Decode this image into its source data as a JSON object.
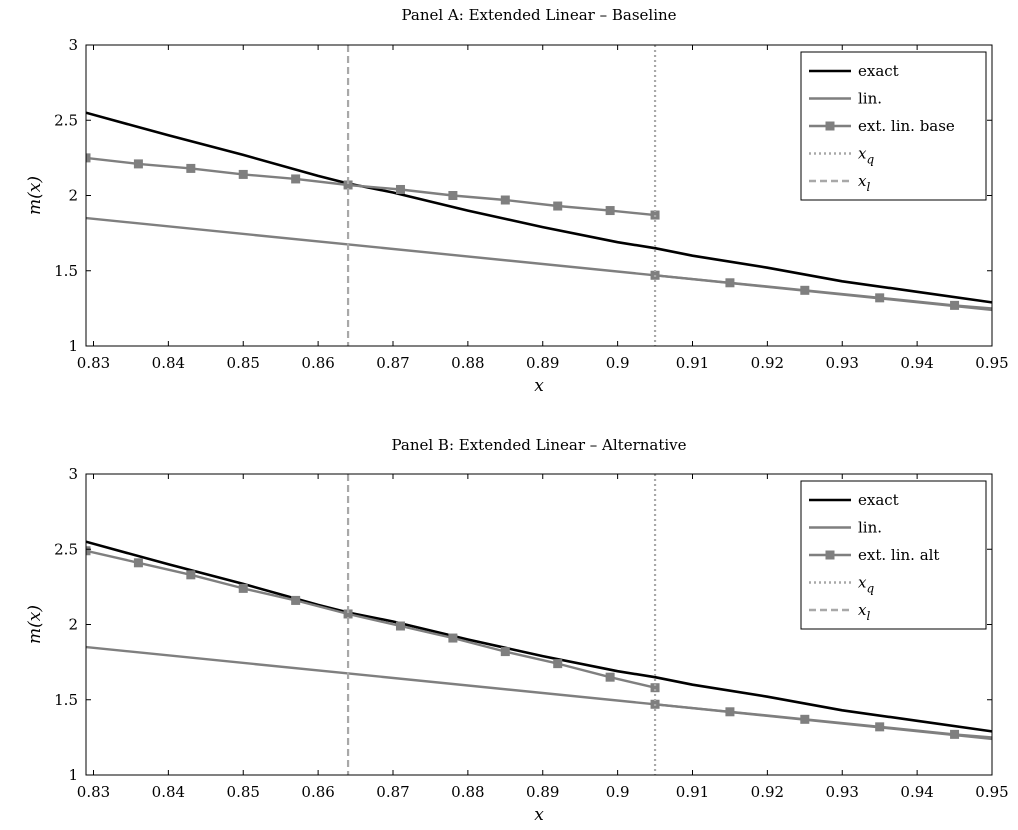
{
  "chart_data": [
    {
      "type": "line",
      "title": "Panel A: Extended Linear – Baseline",
      "xlabel": "x",
      "ylabel": "m(x)",
      "xlim": [
        0.829,
        0.95
      ],
      "ylim": [
        1,
        3
      ],
      "xticks": [
        "0.83",
        "0.84",
        "0.85",
        "0.86",
        "0.87",
        "0.88",
        "0.89",
        "0.9",
        "0.91",
        "0.92",
        "0.93",
        "0.94",
        "0.95"
      ],
      "yticks": [
        "1",
        "1.5",
        "2",
        "2.5",
        "3"
      ],
      "legend_position": "top-right",
      "grid": false,
      "series": [
        {
          "name": "exact",
          "color": "#000000",
          "style": "solid",
          "x": [
            0.829,
            0.84,
            0.85,
            0.86,
            0.864,
            0.87,
            0.88,
            0.89,
            0.9,
            0.905,
            0.91,
            0.92,
            0.93,
            0.94,
            0.95
          ],
          "y": [
            2.55,
            2.4,
            2.27,
            2.13,
            2.08,
            2.02,
            1.9,
            1.79,
            1.69,
            1.65,
            1.6,
            1.52,
            1.43,
            1.36,
            1.29
          ]
        },
        {
          "name": "lin.",
          "color": "#7f7f7f",
          "style": "solid",
          "x": [
            0.829,
            0.905,
            0.95
          ],
          "y": [
            1.85,
            1.47,
            1.24
          ]
        },
        {
          "name": "ext. lin. base",
          "color": "#7f7f7f",
          "style": "solid",
          "marker": "square",
          "segments": [
            {
              "x": [
                0.829,
                0.836,
                0.843,
                0.85,
                0.857,
                0.864,
                0.871,
                0.878,
                0.885,
                0.892,
                0.899,
                0.905
              ],
              "y": [
                2.25,
                2.21,
                2.18,
                2.14,
                2.11,
                2.07,
                2.04,
                2.0,
                1.97,
                1.93,
                1.9,
                1.87
              ]
            },
            {
              "x": [
                0.905,
                0.915,
                0.925,
                0.935,
                0.945,
                0.95
              ],
              "y": [
                1.47,
                1.42,
                1.37,
                1.32,
                1.27,
                1.25
              ],
              "markers": [
                0.905,
                0.915,
                0.925,
                0.935,
                0.945
              ]
            }
          ]
        },
        {
          "name": "x_q",
          "color": "#a8a8a8",
          "style": "dotted",
          "x": 0.905
        },
        {
          "name": "x_l",
          "color": "#a8a8a8",
          "style": "dashed",
          "x": 0.864
        }
      ]
    },
    {
      "type": "line",
      "title": "Panel B: Extended Linear – Alternative",
      "xlabel": "x",
      "ylabel": "m(x)",
      "xlim": [
        0.829,
        0.95
      ],
      "ylim": [
        1,
        3
      ],
      "xticks": [
        "0.83",
        "0.84",
        "0.85",
        "0.86",
        "0.87",
        "0.88",
        "0.89",
        "0.9",
        "0.91",
        "0.92",
        "0.93",
        "0.94",
        "0.95"
      ],
      "yticks": [
        "1",
        "1.5",
        "2",
        "2.5",
        "3"
      ],
      "legend_position": "top-right",
      "grid": false,
      "series": [
        {
          "name": "exact",
          "color": "#000000",
          "style": "solid",
          "x": [
            0.829,
            0.84,
            0.85,
            0.86,
            0.864,
            0.87,
            0.88,
            0.89,
            0.9,
            0.905,
            0.91,
            0.92,
            0.93,
            0.94,
            0.95
          ],
          "y": [
            2.55,
            2.4,
            2.27,
            2.13,
            2.08,
            2.02,
            1.9,
            1.79,
            1.69,
            1.65,
            1.6,
            1.52,
            1.43,
            1.36,
            1.29
          ]
        },
        {
          "name": "lin.",
          "color": "#7f7f7f",
          "style": "solid",
          "x": [
            0.829,
            0.905,
            0.95
          ],
          "y": [
            1.85,
            1.47,
            1.24
          ]
        },
        {
          "name": "ext. lin. alt",
          "color": "#7f7f7f",
          "style": "solid",
          "marker": "square",
          "segments": [
            {
              "x": [
                0.829,
                0.836,
                0.843,
                0.85,
                0.857,
                0.864,
                0.871,
                0.878,
                0.885,
                0.892,
                0.899,
                0.905
              ],
              "y": [
                2.49,
                2.41,
                2.33,
                2.24,
                2.16,
                2.07,
                1.99,
                1.91,
                1.82,
                1.74,
                1.65,
                1.58
              ]
            },
            {
              "x": [
                0.905,
                0.915,
                0.925,
                0.935,
                0.945,
                0.95
              ],
              "y": [
                1.47,
                1.42,
                1.37,
                1.32,
                1.27,
                1.25
              ],
              "markers": [
                0.905,
                0.915,
                0.925,
                0.935,
                0.945
              ]
            }
          ]
        },
        {
          "name": "x_q",
          "color": "#a8a8a8",
          "style": "dotted",
          "x": 0.905
        },
        {
          "name": "x_l",
          "color": "#a8a8a8",
          "style": "dashed",
          "x": 0.864
        }
      ]
    }
  ]
}
